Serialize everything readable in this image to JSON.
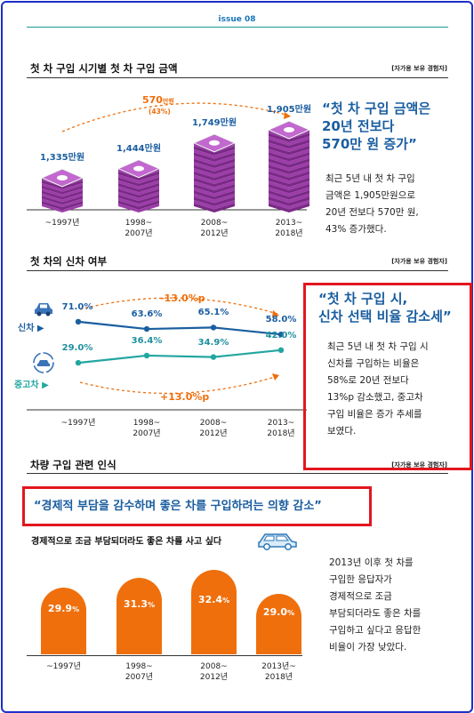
{
  "issue": "issue 08",
  "section1": {
    "title": "첫 차 구입 시기별 첫 차 구입 금액",
    "tag": "[자가용 보유 경험자]",
    "categories": [
      "~1997년",
      "1998~\n2007년",
      "2008~\n2012년",
      "2013~\n2018년"
    ],
    "values": [
      "1,335만원",
      "1,444만원",
      "1,749만원",
      "1,905만원"
    ],
    "increase_label": "570",
    "increase_unit": "만원",
    "increase_pct": "(43%)",
    "quote": "“첫 차 구입 금액은\n20년 전보다\n570만 원 증가”",
    "body": "최근 5년 내 첫 차 구입\n금액은 1,905만원으로\n20년 전보다 570만 원,\n43% 증가했다."
  },
  "section2": {
    "title": "첫 차의 신차 여부",
    "tag": "[자가용 보유 경험자]",
    "new_label": "신차 ▶",
    "used_label": "중고차 ▶",
    "new_change": "-13.0%p",
    "used_change": "+13.0%p",
    "categories": [
      "~1997년",
      "1998~\n2007년",
      "2008~\n2012년",
      "2013~\n2018년"
    ],
    "quote": "“첫 차 구입 시,\n신차 선택 비율 감소세”",
    "body": "최근 5년 내 첫 차 구입 시\n신차를 구입하는 비율은\n58%로 20년 전보다\n13%p 감소했고, 중고차\n구입 비율은 증가 추세를\n보였다."
  },
  "section3": {
    "title": "차량 구입 관련 인식",
    "tag": "[자가용 보유 경험자]",
    "headline": "“경제적 부담을 감수하며 좋은 차를 구입하려는 의향 감소”",
    "subtitle": "경제적으로 조금 부담되더라도 좋은 차를 사고 싶다",
    "categories": [
      "~1997년",
      "1998~\n2007년",
      "2008~\n2012년",
      "2013년~\n2018년"
    ],
    "body": "2013년 이후 첫 차를\n구입한 응답자가\n경제적으로 조금\n부담되더라도 좋은 차를\n구입하고 싶다고 응답한\n비율이 가장 낮았다."
  },
  "chart_data": [
    {
      "type": "bar",
      "title": "첫 차 구입 시기별 첫 차 구입 금액",
      "categories": [
        "~1997년",
        "1998~2007년",
        "2008~2012년",
        "2013~2018년"
      ],
      "values": [
        1335,
        1444,
        1749,
        1905
      ]
    },
    {
      "type": "line",
      "title": "첫 차의 신차 여부",
      "categories": [
        "~1997년",
        "1998~2007년",
        "2008~2012년",
        "2013~2018년"
      ],
      "ylim": [
        0,
        100
      ],
      "series": [
        {
          "name": "신차",
          "values": [
            71.0,
            63.6,
            65.1,
            58.0
          ],
          "labels": [
            "71.0%",
            "63.6%",
            "65.1%",
            "58.0%"
          ],
          "color": "#1a5ea0"
        },
        {
          "name": "중고차",
          "values": [
            29.0,
            36.4,
            34.9,
            42.0
          ],
          "labels": [
            "29.0%",
            "36.4%",
            "34.9%",
            "42.0%"
          ],
          "color": "#22a6a0"
        }
      ]
    },
    {
      "type": "bar",
      "title": "경제적으로 조금 부담되더라도 좋은 차를 사고 싶다",
      "categories": [
        "~1997년",
        "1998~2007년",
        "2008~2012년",
        "2013년~2018년"
      ],
      "values": [
        29.9,
        31.3,
        32.4,
        29.0
      ],
      "labels": [
        "29.9%",
        "31.3%",
        "32.4%",
        "29.0%"
      ],
      "color": "#ef6f0c"
    }
  ]
}
